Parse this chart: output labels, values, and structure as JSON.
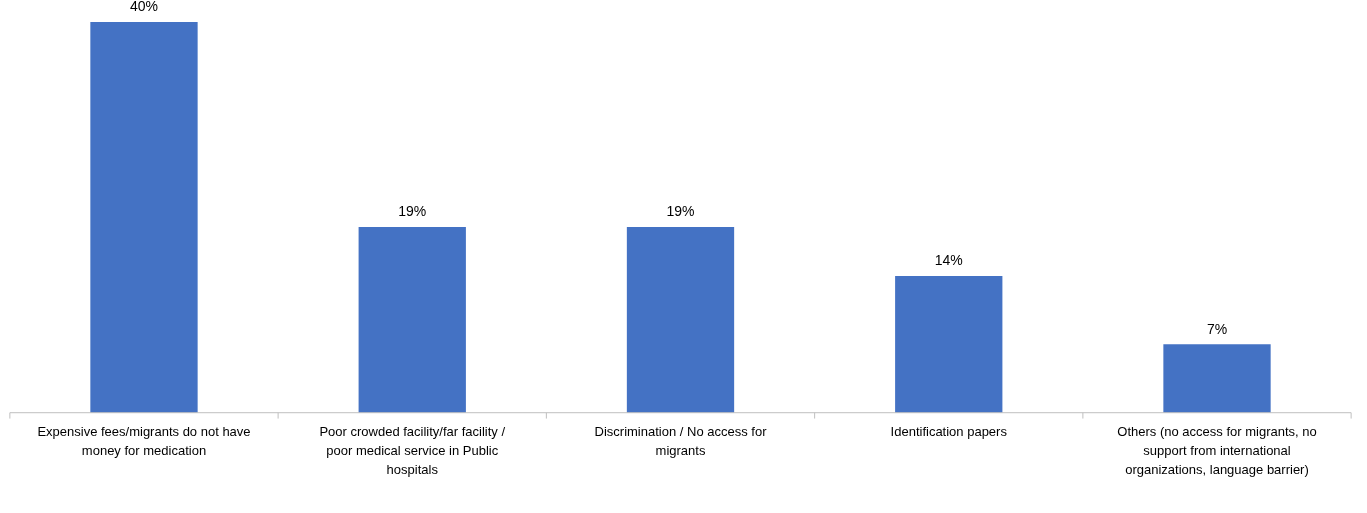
{
  "chart_data": {
    "type": "bar",
    "categories": [
      "Expensive fees/migrants do not have money for medication",
      "Poor crowded facility/far facility / poor medical service in Public hospitals",
      "Discrimination / No access for migrants",
      "Identification papers",
      "Others (no access for migrants, no support from international organizations, language barrier)"
    ],
    "values": [
      40,
      19,
      19,
      14,
      7
    ],
    "value_labels": [
      "40%",
      "19%",
      "19%",
      "14%",
      "7%"
    ],
    "color": "#4472c4"
  }
}
